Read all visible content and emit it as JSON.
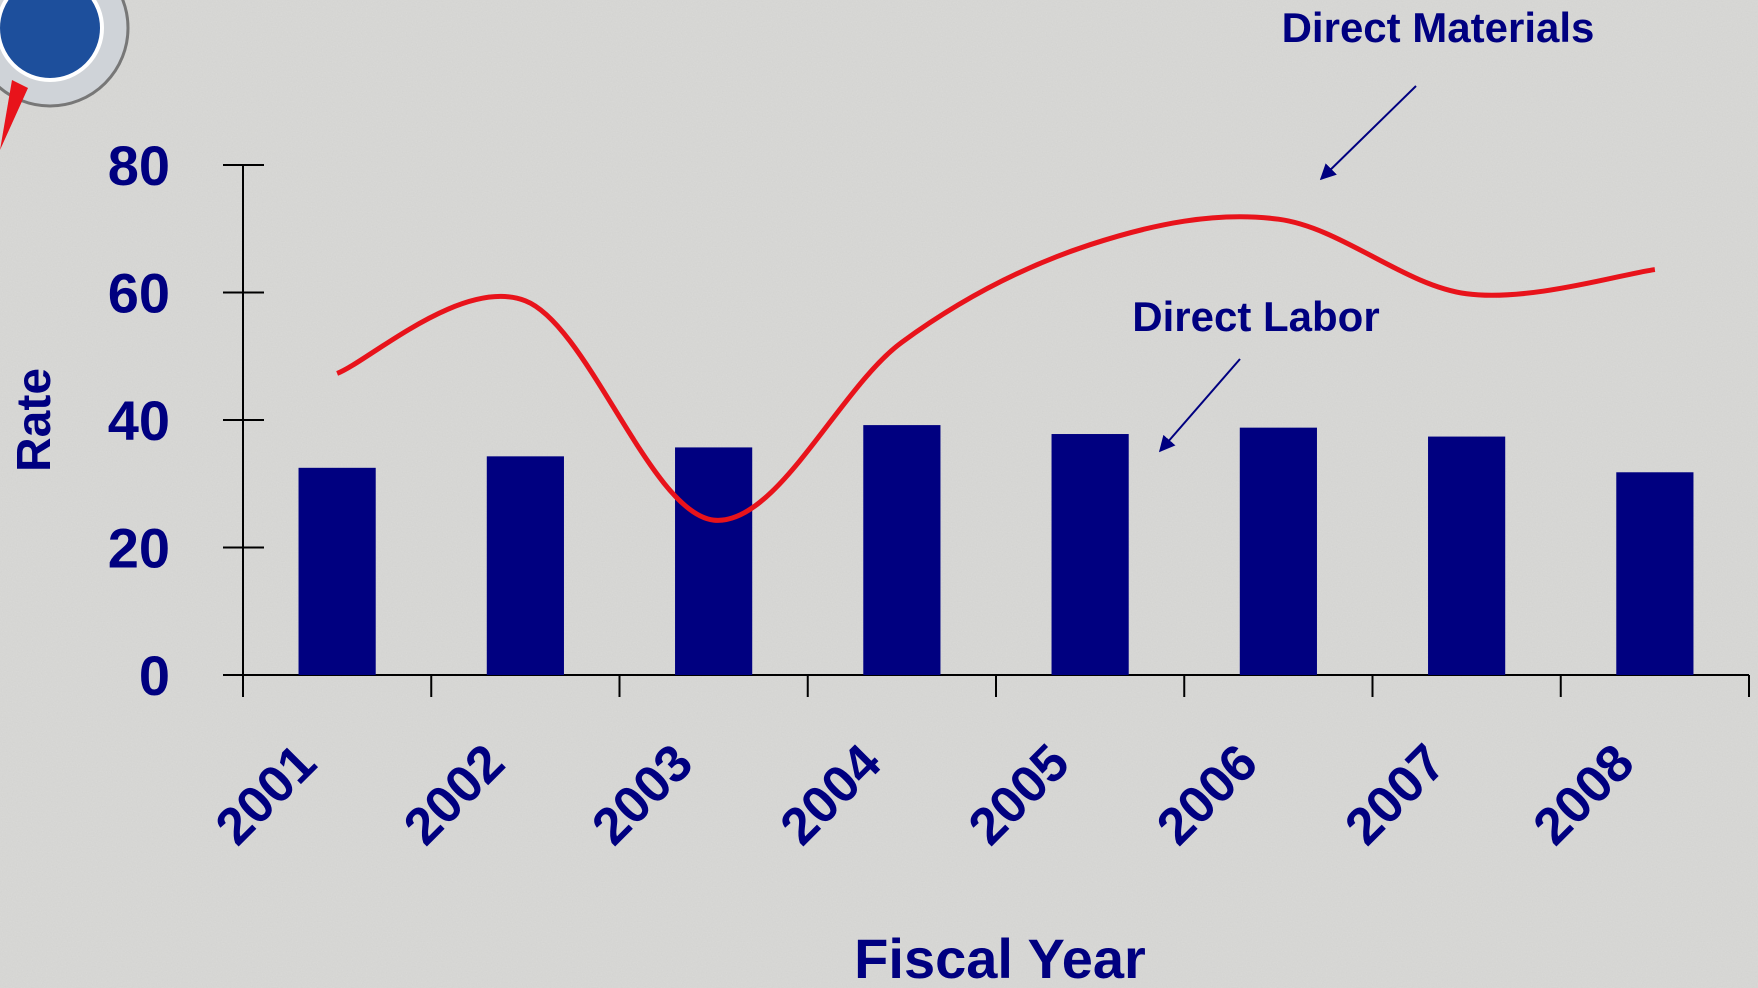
{
  "chart_data": {
    "type": "bar",
    "categories": [
      "2001",
      "2002",
      "2003",
      "2004",
      "2005",
      "2006",
      "2007",
      "2008"
    ],
    "series": [
      {
        "name": "Direct Labor",
        "type": "bar",
        "color": "#000080",
        "values": [
          32.5,
          34.3,
          35.7,
          39.2,
          37.8,
          38.8,
          37.4,
          31.8
        ]
      },
      {
        "name": "Direct Materials",
        "type": "line",
        "color": "#e8131b",
        "values": [
          47.3,
          58.7,
          24.3,
          52.2,
          67.5,
          71.5,
          59.8,
          63.6
        ]
      }
    ],
    "xlabel": "Fiscal Year",
    "ylabel": "Rate",
    "ylim": [
      0,
      80
    ],
    "yticks": [
      0,
      20,
      40,
      60,
      80
    ],
    "grid": false
  }
}
